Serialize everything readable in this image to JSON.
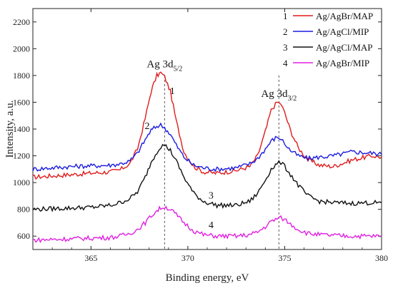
{
  "chart_data": {
    "type": "line",
    "xlabel": "Binding energy, eV",
    "ylabel": "Intensity, a.u.",
    "xlim": [
      362,
      380
    ],
    "ylim": [
      500,
      2300
    ],
    "xticks": [
      365,
      370,
      375,
      380
    ],
    "yticks": [
      600,
      800,
      1000,
      1200,
      1400,
      1600,
      1800,
      2000,
      2200
    ],
    "grid": false,
    "legend_position": "top-right",
    "annotations": [
      {
        "main": "Ag 3d",
        "sub": "5/2",
        "x": 368.8,
        "y": 1860
      },
      {
        "main": "Ag 3d",
        "sub": "3/2",
        "x": 374.7,
        "y": 1640
      }
    ],
    "reference_lines": [
      368.8,
      374.7
    ],
    "series": [
      {
        "label_number": "1",
        "name": "Ag/AgBr/MAP",
        "color": "#e01b1b",
        "x": [
          362,
          363,
          364,
          365,
          366,
          366.5,
          367,
          367.4,
          367.8,
          368.1,
          368.4,
          368.6,
          368.8,
          369.1,
          369.4,
          369.8,
          370.3,
          370.8,
          371.5,
          372.5,
          373.2,
          373.6,
          374.0,
          374.3,
          374.6,
          374.8,
          375.0,
          375.3,
          375.7,
          376.2,
          376.8,
          377.5,
          378.5,
          379.5,
          380
        ],
        "y": [
          1040,
          1050,
          1060,
          1070,
          1080,
          1095,
          1140,
          1250,
          1480,
          1680,
          1800,
          1820,
          1790,
          1680,
          1460,
          1230,
          1120,
          1080,
          1070,
          1090,
          1120,
          1200,
          1380,
          1540,
          1600,
          1590,
          1520,
          1390,
          1260,
          1170,
          1130,
          1120,
          1170,
          1200,
          1190
        ]
      },
      {
        "label_number": "2",
        "name": "Ag/AgCl/MIP",
        "color": "#1a1ae0",
        "x": [
          362,
          363,
          364,
          365,
          366,
          366.5,
          367,
          367.4,
          367.8,
          368.1,
          368.4,
          368.6,
          368.8,
          369.1,
          369.4,
          369.8,
          370.3,
          370.8,
          371.5,
          372.5,
          373.2,
          373.6,
          374.0,
          374.3,
          374.6,
          374.8,
          375.0,
          375.3,
          375.7,
          376.2,
          376.8,
          377.5,
          378.5,
          379.5,
          380
        ],
        "y": [
          1100,
          1110,
          1120,
          1125,
          1130,
          1140,
          1160,
          1220,
          1320,
          1390,
          1420,
          1430,
          1410,
          1360,
          1280,
          1190,
          1130,
          1110,
          1100,
          1110,
          1140,
          1180,
          1250,
          1310,
          1340,
          1330,
          1290,
          1240,
          1200,
          1180,
          1190,
          1200,
          1230,
          1220,
          1210
        ]
      },
      {
        "label_number": "3",
        "name": "Ag/AgCl/MAP",
        "color": "#111111",
        "x": [
          362,
          363,
          364,
          365,
          366,
          366.5,
          367,
          367.4,
          367.8,
          368.1,
          368.4,
          368.6,
          368.8,
          369.1,
          369.4,
          369.8,
          370.3,
          370.8,
          371.5,
          372.5,
          373.2,
          373.6,
          374.0,
          374.3,
          374.6,
          374.8,
          375.0,
          375.3,
          375.7,
          376.2,
          376.8,
          377.5,
          378.5,
          379.5,
          380
        ],
        "y": [
          800,
          805,
          810,
          815,
          830,
          850,
          880,
          930,
          1040,
          1150,
          1230,
          1270,
          1280,
          1240,
          1160,
          1040,
          920,
          860,
          830,
          830,
          860,
          920,
          1020,
          1100,
          1140,
          1150,
          1120,
          1060,
          980,
          900,
          860,
          850,
          845,
          850,
          850
        ]
      },
      {
        "label_number": "4",
        "name": "Ag/AgBr/MIP",
        "color": "#e020e0",
        "x": [
          362,
          363,
          364,
          365,
          366,
          366.5,
          367,
          367.4,
          367.8,
          368.1,
          368.4,
          368.6,
          368.8,
          369.1,
          369.4,
          369.8,
          370.3,
          370.8,
          371.5,
          372.5,
          373.2,
          373.6,
          374.0,
          374.3,
          374.6,
          374.8,
          375.0,
          375.3,
          375.7,
          376.2,
          376.8,
          377.5,
          378.5,
          379.5,
          380
        ],
        "y": [
          570,
          575,
          580,
          585,
          590,
          600,
          620,
          650,
          700,
          750,
          790,
          810,
          820,
          800,
          760,
          700,
          640,
          610,
          600,
          600,
          610,
          630,
          670,
          710,
          730,
          735,
          725,
          690,
          650,
          620,
          610,
          605,
          600,
          600,
          600
        ]
      }
    ],
    "curve_labels": [
      {
        "number": "1",
        "x": 369.2,
        "y": 1660
      },
      {
        "number": "2",
        "x": 367.9,
        "y": 1400
      },
      {
        "number": "3",
        "x": 371.2,
        "y": 880
      },
      {
        "number": "4",
        "x": 371.2,
        "y": 660
      }
    ]
  }
}
